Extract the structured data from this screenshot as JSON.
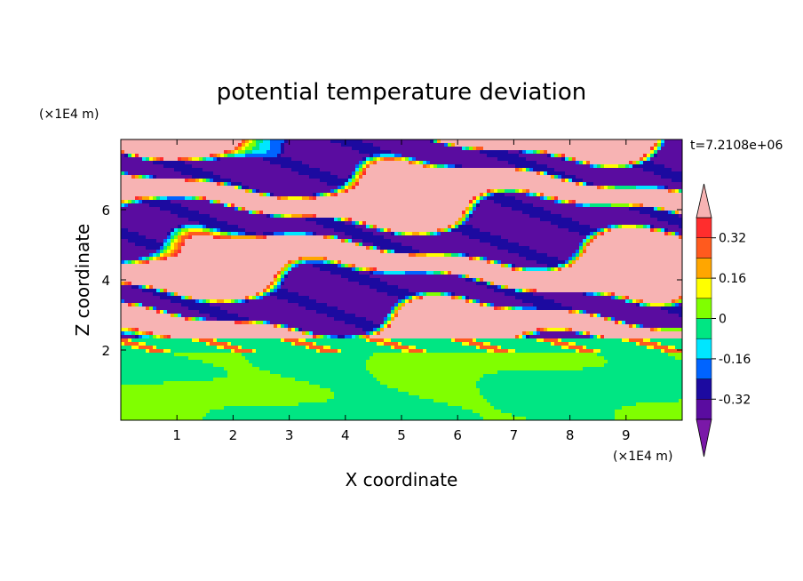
{
  "chart_data": {
    "type": "heatmap",
    "title": "potential temperature deviation",
    "xlabel": "X coordinate",
    "ylabel": "Z coordinate",
    "x_unit": "(×1E4 m)",
    "y_unit": "(×1E4 m)",
    "time_label": "t=7.2108e+06",
    "xlim": [
      0,
      10
    ],
    "ylim": [
      0,
      8
    ],
    "x_ticks": [
      "1",
      "2",
      "3",
      "4",
      "5",
      "6",
      "7",
      "8",
      "9"
    ],
    "y_ticks": [
      "2",
      "4",
      "6"
    ],
    "colorbar": {
      "labels": [
        "0.32",
        "0.16",
        "0",
        "-0.16",
        "-0.32"
      ],
      "levels": [
        -0.4,
        -0.32,
        -0.24,
        -0.16,
        -0.08,
        0,
        0.08,
        0.16,
        0.24,
        0.32,
        0.4
      ],
      "colors": [
        "#5a0ca0",
        "#1c0aa0",
        "#0064ff",
        "#00e6ff",
        "#00e683",
        "#80ff00",
        "#ffff00",
        "#ffa600",
        "#ff5a1e",
        "#ff2d2d",
        "#f7b3b3"
      ],
      "over_color": "#f7b3b3",
      "under_color": "#7a18a8"
    }
  }
}
